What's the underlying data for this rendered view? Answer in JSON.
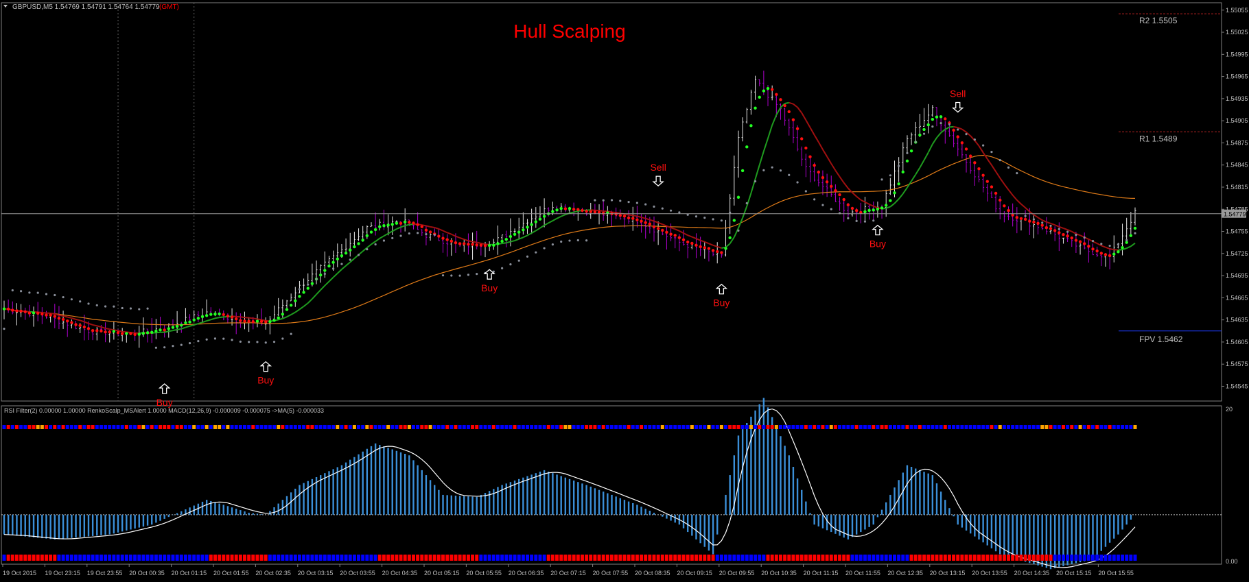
{
  "header": {
    "symbol_info": "GBPUSD,M5  1.54769 1.54791 1.54764 1.54779",
    "timezone": "(GMT)"
  },
  "chart_data": {
    "type": "candlestick",
    "title": "Hull Scalping",
    "price_axis": {
      "ylim": [
        1.54525,
        1.55065
      ],
      "ticks": [
        1.55055,
        1.55025,
        1.54995,
        1.54965,
        1.54935,
        1.54905,
        1.54875,
        1.54845,
        1.54815,
        1.54785,
        1.54755,
        1.54725,
        1.54695,
        1.54665,
        1.54635,
        1.54605,
        1.54575,
        1.54545
      ],
      "tick_labels": [
        "1.55055",
        "1.55025",
        "1.54995",
        "1.54965",
        "1.54935",
        "1.54905",
        "1.54875",
        "1.54845",
        "1.54815",
        "1.54785",
        "1.54755",
        "1.54725",
        "1.54695",
        "1.54665",
        "1.54635",
        "1.54605",
        "1.54575",
        "1.54545"
      ],
      "current_price": 1.54779,
      "current_price_label": "1.54779"
    },
    "pivot_levels": [
      {
        "label": "R2",
        "value": 1.5505,
        "value_label": "1.5505",
        "color": "#b22222"
      },
      {
        "label": "R1",
        "value": 1.5489,
        "value_label": "1.5489",
        "color": "#b22222"
      },
      {
        "label": "FPV",
        "value": 1.5462,
        "value_label": "1.5462",
        "color": "#1f3cff"
      }
    ],
    "time_labels": [
      "19 Oct 2015",
      "19 Oct 23:15",
      "19 Oct 23:55",
      "20 Oct 00:35",
      "20 Oct 01:15",
      "20 Oct 01:55",
      "20 Oct 02:35",
      "20 Oct 03:15",
      "20 Oct 03:55",
      "20 Oct 04:35",
      "20 Oct 05:15",
      "20 Oct 05:55",
      "20 Oct 06:35",
      "20 Oct 07:15",
      "20 Oct 07:55",
      "20 Oct 08:35",
      "20 Oct 09:15",
      "20 Oct 09:55",
      "20 Oct 10:35",
      "20 Oct 11:15",
      "20 Oct 11:55",
      "20 Oct 12:35",
      "20 Oct 13:15",
      "20 Oct 13:55",
      "20 Oct 14:35",
      "20 Oct 15:15",
      "20 Oct 15:55"
    ],
    "signals": [
      {
        "type": "Buy",
        "bar": 38,
        "price": 1.54565
      },
      {
        "type": "Buy",
        "bar": 62,
        "price": 1.54595
      },
      {
        "type": "Buy",
        "bar": 115,
        "price": 1.5472
      },
      {
        "type": "Sell",
        "bar": 155,
        "price": 1.548
      },
      {
        "type": "Buy",
        "bar": 170,
        "price": 1.547
      },
      {
        "type": "Buy",
        "bar": 207,
        "price": 1.5478
      },
      {
        "type": "Sell",
        "bar": 226,
        "price": 1.549
      }
    ],
    "price_path": [
      [
        0,
        1.5465
      ],
      [
        10,
        1.5464
      ],
      [
        20,
        1.5462
      ],
      [
        30,
        1.54615
      ],
      [
        38,
        1.54625
      ],
      [
        48,
        1.54645
      ],
      [
        55,
        1.54635
      ],
      [
        62,
        1.5463
      ],
      [
        70,
        1.5468
      ],
      [
        78,
        1.5472
      ],
      [
        86,
        1.5476
      ],
      [
        94,
        1.5477
      ],
      [
        100,
        1.5475
      ],
      [
        108,
        1.54735
      ],
      [
        116,
        1.5474
      ],
      [
        124,
        1.5477
      ],
      [
        130,
        1.5479
      ],
      [
        140,
        1.5478
      ],
      [
        150,
        1.5477
      ],
      [
        160,
        1.5474
      ],
      [
        170,
        1.5472
      ],
      [
        174,
        1.5488
      ],
      [
        178,
        1.5496
      ],
      [
        184,
        1.5492
      ],
      [
        190,
        1.5484
      ],
      [
        200,
        1.5478
      ],
      [
        208,
        1.5479
      ],
      [
        214,
        1.5488
      ],
      [
        220,
        1.5492
      ],
      [
        228,
        1.5485
      ],
      [
        236,
        1.5478
      ],
      [
        246,
        1.5476
      ],
      [
        256,
        1.5473
      ],
      [
        262,
        1.5472
      ],
      [
        268,
        1.5478
      ]
    ],
    "bar_count": 269,
    "lower_panel": {
      "legend": "RSI Filter(2) 0.00000 1.00000  RenkoScalp_MSAlert 1.0000  MACD(12,26,9) -0.000009 -0.000075  ->MA(5) -0.000033",
      "scale_top_label": "20",
      "scale_bottom_label": "0.00",
      "ylim": [
        -0.0005,
        0.0011
      ],
      "macd_path": [
        [
          0,
          -0.0002
        ],
        [
          12,
          -0.00025
        ],
        [
          25,
          -0.0002
        ],
        [
          35,
          -0.0001
        ],
        [
          48,
          0.00015
        ],
        [
          52,
          0.0001
        ],
        [
          58,
          2e-05
        ],
        [
          62,
          0.0
        ],
        [
          70,
          0.0003
        ],
        [
          80,
          0.0005
        ],
        [
          88,
          0.00072
        ],
        [
          96,
          0.0006
        ],
        [
          104,
          0.0002
        ],
        [
          112,
          0.00018
        ],
        [
          118,
          0.0003
        ],
        [
          128,
          0.00045
        ],
        [
          138,
          0.0003
        ],
        [
          150,
          0.0001
        ],
        [
          160,
          -0.0001
        ],
        [
          168,
          -0.0004
        ],
        [
          174,
          0.0008
        ],
        [
          180,
          0.00118
        ],
        [
          186,
          0.0006
        ],
        [
          192,
          -0.0001
        ],
        [
          200,
          -0.00025
        ],
        [
          206,
          -0.0001
        ],
        [
          214,
          0.0005
        ],
        [
          220,
          0.0004
        ],
        [
          226,
          -0.0001
        ],
        [
          236,
          -0.0004
        ],
        [
          248,
          -0.00055
        ],
        [
          258,
          -0.00045
        ],
        [
          264,
          -0.0002
        ],
        [
          268,
          0.0
        ]
      ],
      "strip_colors": [
        "#0000ff",
        "#ff0000",
        "#ffa500"
      ]
    }
  }
}
